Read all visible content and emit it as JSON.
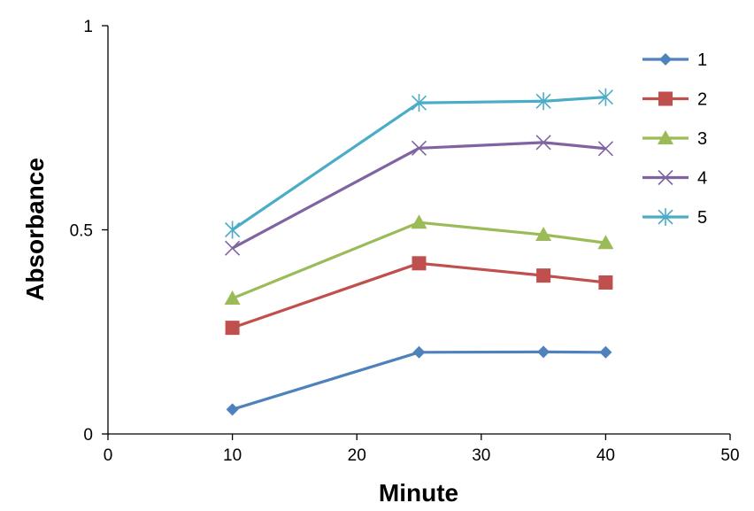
{
  "chart_data": {
    "type": "line",
    "xlabel": "Minute",
    "ylabel": "Absorbance",
    "xlim": [
      0,
      50
    ],
    "ylim": [
      0,
      1
    ],
    "x_ticks": [
      0,
      10,
      20,
      30,
      40,
      50
    ],
    "y_ticks": [
      0,
      0.5,
      1
    ],
    "x_tick_labels": [
      "0",
      "10",
      "20",
      "30",
      "40",
      "50"
    ],
    "y_tick_labels": [
      "0",
      "0.5",
      "1"
    ],
    "grid": false,
    "legend_position": "right",
    "x": [
      10,
      25,
      35,
      40
    ],
    "series": [
      {
        "name": "1",
        "values": [
          0.06,
          0.2,
          0.201,
          0.2
        ],
        "color": "#4F81BD",
        "marker": "diamond"
      },
      {
        "name": "2",
        "values": [
          0.26,
          0.418,
          0.388,
          0.371
        ],
        "color": "#C0504D",
        "marker": "square"
      },
      {
        "name": "3",
        "values": [
          0.332,
          0.518,
          0.488,
          0.468
        ],
        "color": "#9BBB59",
        "marker": "triangle"
      },
      {
        "name": "4",
        "values": [
          0.455,
          0.7,
          0.714,
          0.699
        ],
        "color": "#8064A2",
        "marker": "x"
      },
      {
        "name": "5",
        "values": [
          0.5,
          0.811,
          0.815,
          0.825
        ],
        "color": "#4BACC6",
        "marker": "asterisk"
      }
    ]
  }
}
